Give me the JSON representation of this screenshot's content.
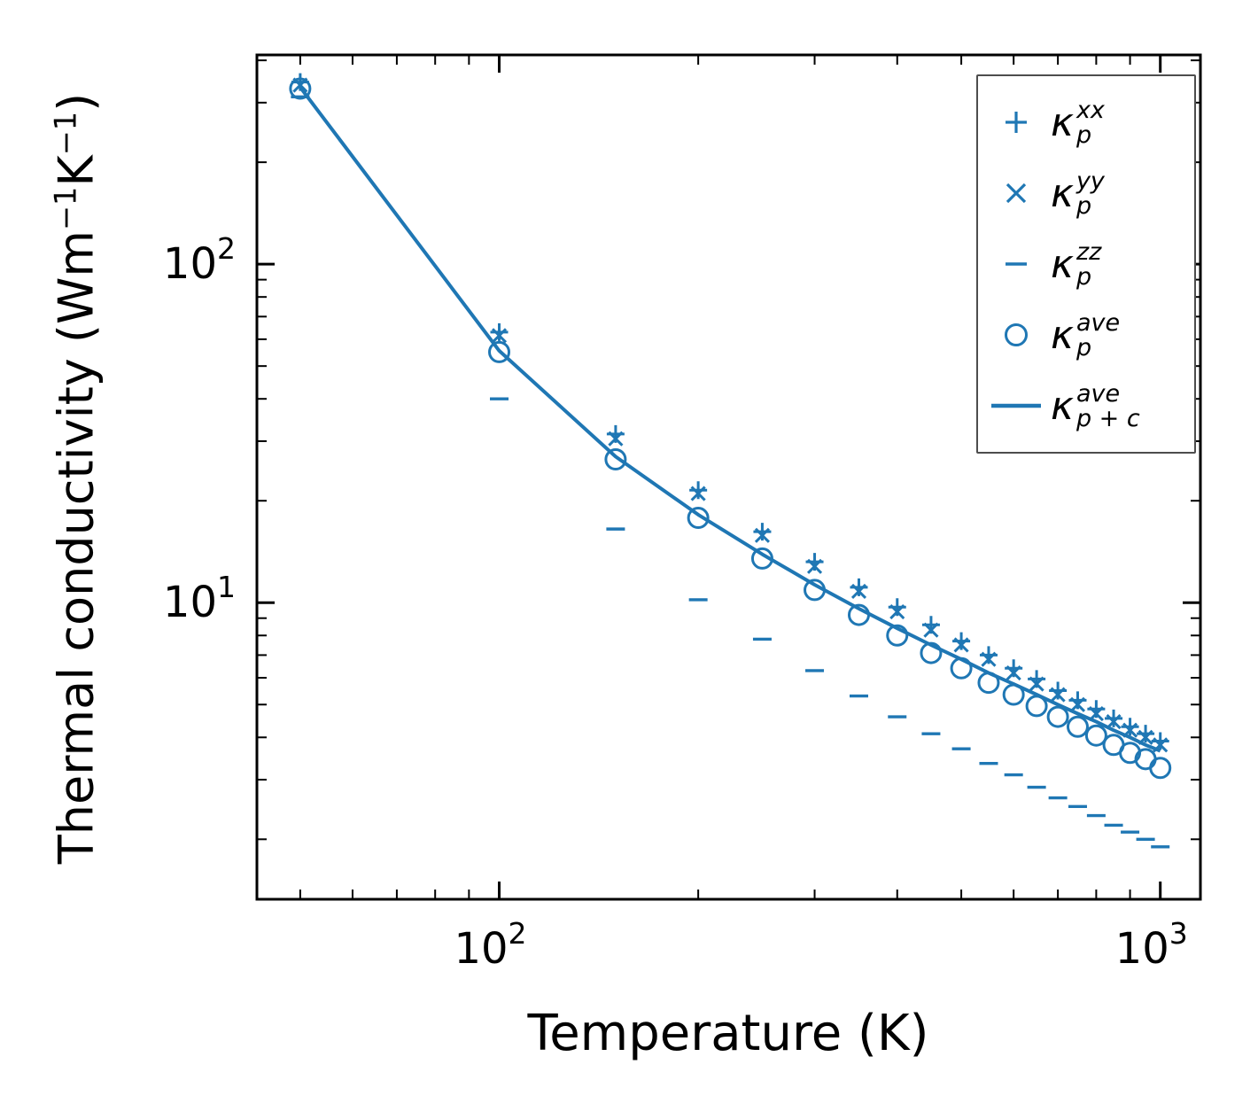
{
  "figure": {
    "background": "#ffffff",
    "accent_color": "#1f77b4",
    "axis_color": "#000000"
  },
  "axes": {
    "xlabel": "Temperature (K)",
    "ylabel": "Thermal conductivity (Wm⁻¹K⁻¹)",
    "ylabel_parts": [
      {
        "t": "Thermal conductivity (Wm"
      },
      {
        "sup": "−1"
      },
      {
        "t": "K"
      },
      {
        "sup": "−1"
      },
      {
        "t": ")"
      }
    ],
    "xscale": "log",
    "yscale": "log",
    "xlim": [
      43,
      1150
    ],
    "ylim": [
      1.33,
      415
    ],
    "x_ticks": [
      {
        "value": 100,
        "base": "10",
        "exp": "2"
      },
      {
        "value": 1000,
        "base": "10",
        "exp": "3"
      }
    ],
    "y_ticks": [
      {
        "value": 10,
        "base": "10",
        "exp": "1"
      },
      {
        "value": 100,
        "base": "10",
        "exp": "2"
      }
    ],
    "x_minor_ticks": [
      50,
      60,
      70,
      80,
      90,
      200,
      300,
      400,
      500,
      600,
      700,
      800,
      900
    ],
    "y_minor_ticks": [
      2,
      3,
      4,
      5,
      6,
      7,
      8,
      9,
      20,
      30,
      40,
      50,
      60,
      70,
      80,
      90,
      200,
      300,
      400
    ]
  },
  "legend": {
    "position": "upper right",
    "items": [
      {
        "marker": "plus",
        "symbol": "κ",
        "sub": "p",
        "sup": "xx"
      },
      {
        "marker": "x",
        "symbol": "κ",
        "sub": "p",
        "sup": "yy"
      },
      {
        "marker": "hline",
        "symbol": "κ",
        "sub": "p",
        "sup": "zz"
      },
      {
        "marker": "circle",
        "symbol": "κ",
        "sub": "p",
        "sup": "ave"
      },
      {
        "marker": "line",
        "symbol": "κ",
        "sub": "p + c",
        "sup": "ave"
      }
    ]
  },
  "chart_data": {
    "type": "scatter",
    "title": "",
    "xlabel": "Temperature (K)",
    "ylabel": "Thermal conductivity (Wm⁻¹K⁻¹)",
    "xscale": "log",
    "yscale": "log",
    "xlim": [
      43,
      1150
    ],
    "ylim": [
      1.33,
      415
    ],
    "grid": false,
    "legend_position": "upper right",
    "x": [
      50,
      100,
      150,
      200,
      250,
      300,
      350,
      400,
      450,
      500,
      550,
      600,
      650,
      700,
      750,
      800,
      850,
      900,
      950,
      1000
    ],
    "series": [
      {
        "name": "κ_p^xx",
        "marker": "plus",
        "type": "scatter",
        "values": [
          345,
          63,
          31.5,
          21.5,
          16.2,
          13.2,
          11.1,
          9.7,
          8.6,
          7.7,
          7.0,
          6.4,
          5.95,
          5.5,
          5.15,
          4.85,
          4.55,
          4.3,
          4.1,
          3.9
        ]
      },
      {
        "name": "κ_p^yy",
        "marker": "x",
        "type": "scatter",
        "values": [
          338,
          61.5,
          30.5,
          21.0,
          15.8,
          12.8,
          10.8,
          9.4,
          8.3,
          7.5,
          6.8,
          6.2,
          5.75,
          5.35,
          5.0,
          4.7,
          4.45,
          4.2,
          4.0,
          3.8
        ]
      },
      {
        "name": "κ_p^zz",
        "marker": "hline",
        "type": "scatter",
        "values": [
          312,
          40,
          16.5,
          10.2,
          7.8,
          6.3,
          5.3,
          4.6,
          4.1,
          3.7,
          3.35,
          3.1,
          2.85,
          2.65,
          2.5,
          2.35,
          2.2,
          2.1,
          2.0,
          1.9
        ]
      },
      {
        "name": "κ_p^ave",
        "marker": "circle",
        "type": "scatter",
        "values": [
          330,
          55,
          26.5,
          17.8,
          13.5,
          10.9,
          9.2,
          8.0,
          7.1,
          6.4,
          5.8,
          5.35,
          4.95,
          4.6,
          4.3,
          4.05,
          3.8,
          3.6,
          3.45,
          3.25
        ]
      },
      {
        "name": "κ_{p+c}^ave",
        "marker": "none",
        "type": "line",
        "values": [
          333,
          55.5,
          27.0,
          18.2,
          13.9,
          11.3,
          9.6,
          8.4,
          7.5,
          6.8,
          6.2,
          5.75,
          5.35,
          5.0,
          4.7,
          4.45,
          4.2,
          4.0,
          3.8,
          3.65
        ]
      }
    ]
  }
}
